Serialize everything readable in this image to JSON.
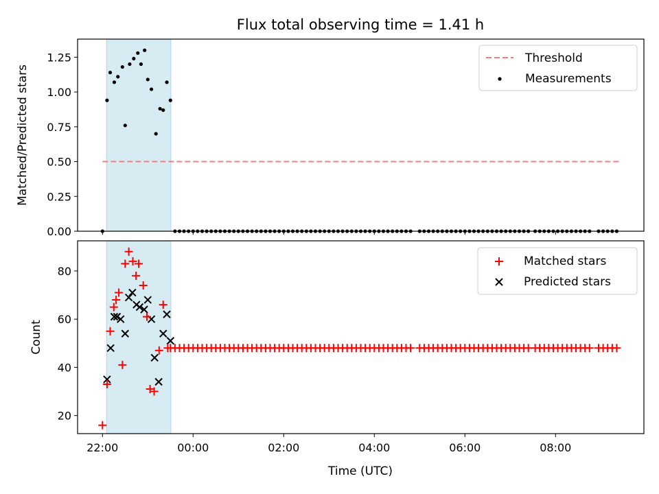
{
  "chart_data": {
    "type": "scatter",
    "title": "Flux total observing time = 1.41 h",
    "xlabel": "Time (UTC)",
    "x_unit": "hours since 22:00 UTC (values past midnight continue above 2)",
    "xlim": [
      -0.55,
      11.95
    ],
    "x_ticks": [
      0,
      2,
      4,
      6,
      8,
      10
    ],
    "x_tick_labels": [
      "22:00",
      "00:00",
      "02:00",
      "04:00",
      "06:00",
      "08:00"
    ],
    "shaded_span": [
      0.09,
      1.51
    ],
    "colors": {
      "span": "#add8e6",
      "threshold": "#f08080",
      "measurements": "#000000",
      "matched": "#ff0000",
      "predicted": "#000000"
    },
    "top": {
      "ylabel": "Matched/Predicted stars",
      "ylim": [
        0,
        1.38
      ],
      "y_ticks": [
        0,
        0.25,
        0.5,
        0.75,
        1.0,
        1.25
      ],
      "y_tick_labels": [
        "0.00",
        "0.25",
        "0.50",
        "0.75",
        "1.00",
        "1.25"
      ],
      "threshold": {
        "name": "Threshold",
        "value": 0.5,
        "x_range": [
          0.0,
          11.4
        ]
      },
      "measurements": {
        "name": "Measurements",
        "x": [
          0.1,
          0.17,
          0.26,
          0.34,
          0.44,
          0.5,
          0.6,
          0.69,
          0.78,
          0.85,
          0.93,
          1.0,
          1.08,
          1.18,
          1.27,
          1.34,
          1.42,
          1.5
        ],
        "y": [
          0.94,
          1.14,
          1.07,
          1.11,
          1.18,
          0.76,
          1.2,
          1.24,
          1.28,
          1.2,
          1.3,
          1.09,
          1.02,
          0.7,
          0.88,
          0.87,
          1.07,
          0.94
        ],
        "zero_start": 0.0,
        "zero_runs": [
          [
            1.6,
            4.4
          ],
          [
            4.5,
            6.8
          ],
          [
            7.0,
            9.4
          ],
          [
            9.55,
            10.8
          ],
          [
            10.95,
            11.4
          ]
        ]
      }
    },
    "bottom": {
      "ylabel": "Count",
      "ylim": [
        12.5,
        92.5
      ],
      "y_ticks": [
        20,
        40,
        60,
        80
      ],
      "y_tick_labels": [
        "20",
        "40",
        "60",
        "80"
      ],
      "series": [
        {
          "name": "Matched stars",
          "marker": "+",
          "x": [
            0.0,
            0.1,
            0.17,
            0.25,
            0.3,
            0.36,
            0.44,
            0.5,
            0.58,
            0.67,
            0.74,
            0.8,
            0.9,
            0.98,
            1.05,
            1.14,
            1.25,
            1.34,
            1.44
          ],
          "y": [
            16,
            33,
            55,
            65,
            68,
            71,
            41,
            83,
            88,
            84,
            78,
            83,
            74,
            61,
            31,
            30,
            47,
            66,
            48
          ],
          "flat_value": 48,
          "flat_runs": [
            [
              1.5,
              4.4
            ],
            [
              4.5,
              6.8
            ],
            [
              7.0,
              9.4
            ],
            [
              9.55,
              10.8
            ],
            [
              10.95,
              11.4
            ]
          ]
        },
        {
          "name": "Predicted stars",
          "marker": "x",
          "x": [
            0.1,
            0.18,
            0.26,
            0.32,
            0.4,
            0.5,
            0.58,
            0.66,
            0.75,
            0.82,
            0.92,
            1.0,
            1.08,
            1.15,
            1.24,
            1.34,
            1.42
          ],
          "y": [
            35,
            48,
            61,
            61,
            60,
            54,
            69,
            71,
            66,
            65,
            64,
            68,
            60,
            44,
            34,
            54,
            62
          ],
          "tail_x": [
            1.5
          ],
          "tail_y": [
            51
          ]
        }
      ]
    }
  }
}
